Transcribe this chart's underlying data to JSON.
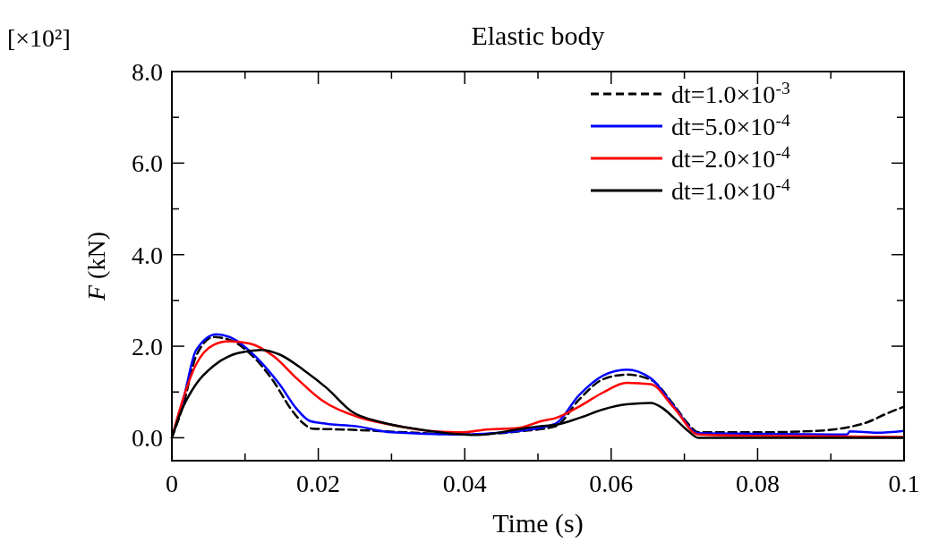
{
  "chart_data": {
    "type": "line",
    "title": "Elastic body",
    "xlabel": "Time (s)",
    "ylabel": "F (kN)",
    "annotations": [
      "[×10²]"
    ],
    "xlim": [
      0,
      0.1
    ],
    "ylim": [
      -0.5,
      8
    ],
    "xticks": [
      0,
      {
        "value": 0.01,
        "label": null
      },
      0.02,
      {
        "value": 0.03,
        "label": null
      },
      0.04,
      {
        "value": 0.05,
        "label": null
      },
      0.06,
      {
        "value": 0.07,
        "label": null
      },
      0.08,
      {
        "value": 0.09,
        "label": null
      },
      0.1
    ],
    "yticks": [
      {
        "value": 0,
        "label": "0.0"
      },
      {
        "value": 1,
        "label": null
      },
      {
        "value": 2,
        "label": "2.0"
      },
      {
        "value": 3,
        "label": null
      },
      {
        "value": 4,
        "label": "4.0"
      },
      {
        "value": 5,
        "label": null
      },
      {
        "value": 6,
        "label": "6.0"
      },
      {
        "value": 7,
        "label": null
      },
      {
        "value": 8,
        "label": "8.0"
      }
    ],
    "legend": "top right",
    "grid": false,
    "series": [
      {
        "name": "dt=1.0×10$^{-3}$",
        "color": "#000000",
        "line_style": "dashed",
        "x": [
          0,
          0.0016,
          0.0033,
          0.0057,
          0.0082,
          0.0106,
          0.0139,
          0.0163,
          0.018,
          0.0192,
          0.0237,
          0.0318,
          0.04,
          0.0475,
          0.0524,
          0.0556,
          0.0589,
          0.0621,
          0.0654,
          0.0686,
          0.0705,
          0.0719,
          0.08,
          0.088,
          0.092,
          0.095,
          0.0975,
          0.1
        ],
        "values": [
          0,
          0.74,
          1.78,
          2.2,
          2.12,
          1.85,
          1.23,
          0.62,
          0.31,
          0.2,
          0.18,
          0.12,
          0.07,
          0.14,
          0.25,
          0.83,
          1.28,
          1.38,
          1.27,
          0.71,
          0.31,
          0.12,
          0.12,
          0.15,
          0.22,
          0.34,
          0.52,
          0.68
        ]
      },
      {
        "name": "dt=5.0×10$^{-4}$",
        "color": "#0000ff",
        "line_style": "solid",
        "x": [
          0,
          0.0016,
          0.0033,
          0.0061,
          0.0082,
          0.0114,
          0.0147,
          0.0171,
          0.0188,
          0.0204,
          0.0253,
          0.03,
          0.04,
          0.044,
          0.0475,
          0.0524,
          0.0556,
          0.0589,
          0.0621,
          0.0654,
          0.0686,
          0.0719,
          0.0759,
          0.0922,
          0.0926,
          0.0963,
          0.1
        ],
        "values": [
          0,
          0.86,
          1.91,
          2.26,
          2.18,
          1.78,
          1.17,
          0.62,
          0.37,
          0.32,
          0.25,
          0.12,
          0.07,
          0.1,
          0.15,
          0.31,
          0.93,
          1.36,
          1.49,
          1.3,
          0.68,
          0.1,
          0.09,
          0.07,
          0.14,
          0.11,
          0.15
        ]
      },
      {
        "name": "dt=2.0×10$^{-4}$",
        "color": "#ff0000",
        "line_style": "solid",
        "x": [
          0,
          0.0012,
          0.0033,
          0.0057,
          0.0078,
          0.0106,
          0.0139,
          0.0171,
          0.0204,
          0.0253,
          0.03,
          0.0351,
          0.04,
          0.0424,
          0.0475,
          0.0506,
          0.0524,
          0.0556,
          0.0589,
          0.0621,
          0.0654,
          0.0686,
          0.0719,
          0.08,
          0.1
        ],
        "values": [
          0,
          0.68,
          1.6,
          2.03,
          2.11,
          2.06,
          1.78,
          1.29,
          0.83,
          0.46,
          0.28,
          0.15,
          0.12,
          0.17,
          0.22,
          0.37,
          0.43,
          0.68,
          0.99,
          1.2,
          1.17,
          0.65,
          0.07,
          0.04,
          0.02
        ]
      },
      {
        "name": "dt=1.0×10$^{-4}$",
        "color": "#000000",
        "line_style": "solid",
        "x": [
          0,
          0.0012,
          0.0033,
          0.0057,
          0.009,
          0.0122,
          0.0147,
          0.018,
          0.0212,
          0.0245,
          0.0286,
          0.0339,
          0.0416,
          0.0475,
          0.0502,
          0.0524,
          0.0556,
          0.0589,
          0.0621,
          0.0654,
          0.067,
          0.0686,
          0.0705,
          0.0719,
          0.1
        ],
        "values": [
          0,
          0.55,
          1.17,
          1.57,
          1.85,
          1.92,
          1.82,
          1.48,
          1.08,
          0.58,
          0.34,
          0.18,
          0.06,
          0.19,
          0.25,
          0.28,
          0.43,
          0.62,
          0.73,
          0.76,
          0.65,
          0.43,
          0.15,
          0,
          0
        ]
      }
    ]
  }
}
